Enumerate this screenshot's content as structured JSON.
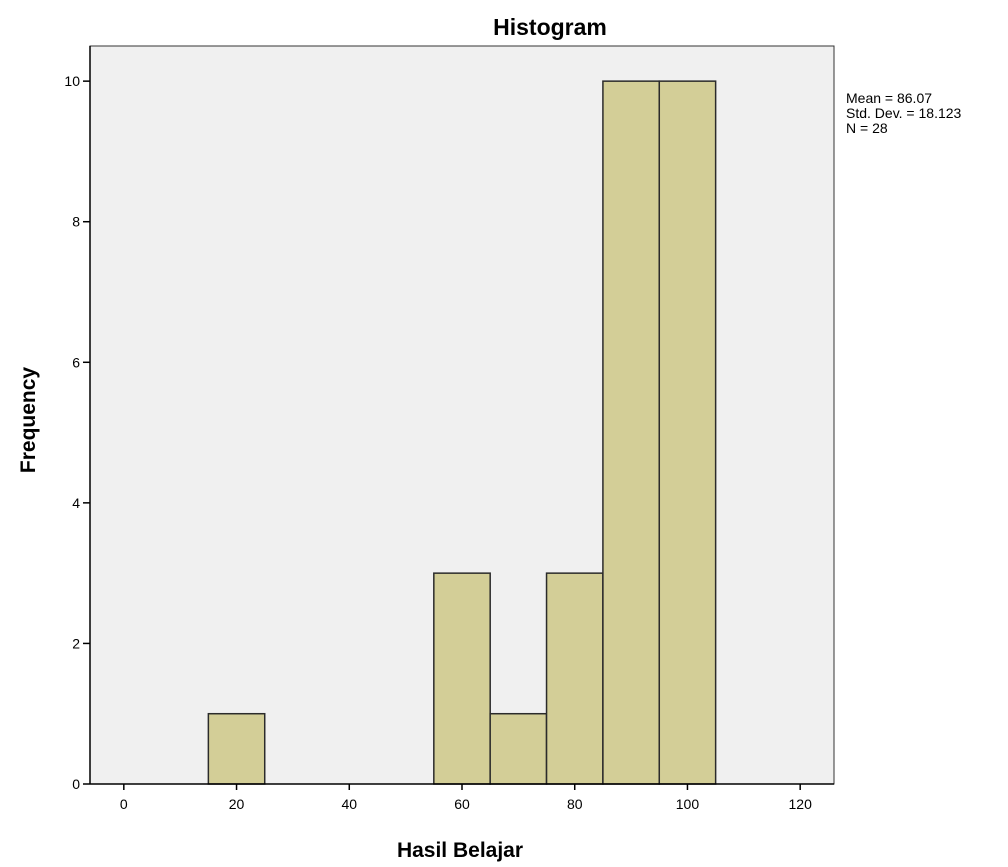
{
  "chart_data": {
    "type": "bar",
    "title": "Histogram",
    "xlabel": "Hasil Belajar",
    "ylabel": "Frequency",
    "xlim": [
      -6,
      126
    ],
    "ylim": [
      0,
      10.5
    ],
    "xticks": [
      0,
      20,
      40,
      60,
      80,
      100,
      120
    ],
    "yticks": [
      0,
      2,
      4,
      6,
      8,
      10
    ],
    "bin_width": 10,
    "bins": [
      {
        "center": 20,
        "value": 1
      },
      {
        "center": 60,
        "value": 3
      },
      {
        "center": 70,
        "value": 1
      },
      {
        "center": 80,
        "value": 3
      },
      {
        "center": 90,
        "value": 10
      },
      {
        "center": 100,
        "value": 10
      }
    ],
    "stats": {
      "mean": "Mean = 86.07",
      "std_dev": "Std. Dev. = 18.123",
      "n": "N = 28"
    },
    "grid": false,
    "colors": {
      "bar_fill": "#d3ce97",
      "bar_stroke": "#2b2b2b",
      "plot_background": "#f0f0f0",
      "axis": "#000000"
    }
  }
}
